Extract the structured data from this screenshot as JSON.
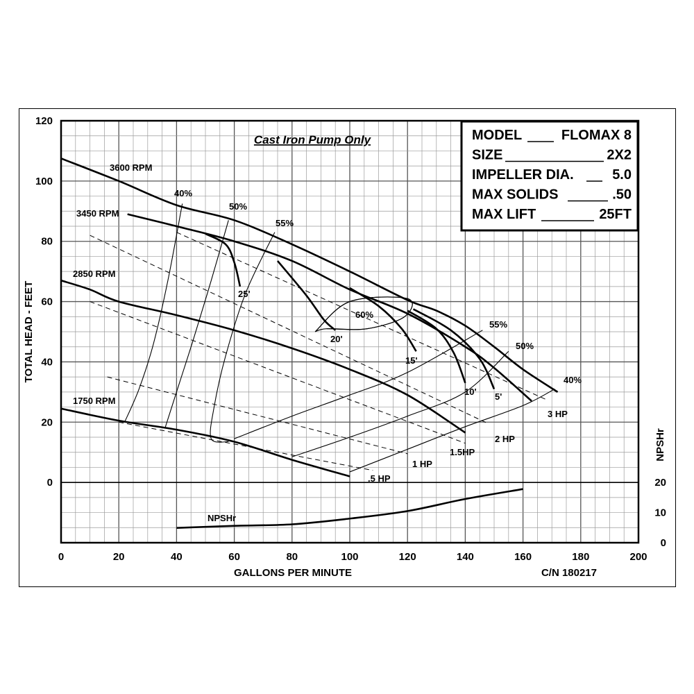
{
  "chart_data": {
    "type": "line",
    "title": "Cast Iron Pump Only",
    "xlabel": "GALLONS PER MINUTE",
    "ylabel": "TOTAL HEAD - FEET",
    "y2label": "NPSHr",
    "xlim": [
      0,
      200
    ],
    "ylim": [
      -20,
      120
    ],
    "y2lim": [
      0,
      20
    ],
    "xticks": [
      "0",
      "20",
      "40",
      "60",
      "80",
      "100",
      "120",
      "140",
      "160",
      "180",
      "200"
    ],
    "yticks": [
      "120",
      "100",
      "80",
      "60",
      "40",
      "20",
      "0"
    ],
    "y2ticks": [
      "20",
      "10",
      "0"
    ],
    "grid": true,
    "catalog_number": "C/N 180217",
    "info_box": [
      {
        "label": "MODEL",
        "value": "FLOMAX 8"
      },
      {
        "label": "SIZE",
        "value": "2X2"
      },
      {
        "label": "IMPELLER DIA.",
        "value": "5.0"
      },
      {
        "label": "MAX SOLIDS",
        "value": ".50"
      },
      {
        "label": "MAX LIFT",
        "value": "25FT"
      }
    ],
    "series": [
      {
        "name": "3600 RPM",
        "x": [
          0,
          20,
          40,
          60,
          80,
          100,
          120,
          130,
          140,
          150,
          160,
          172
        ],
        "y": [
          107.5,
          100,
          92,
          87,
          79,
          70,
          60.5,
          57,
          52,
          45,
          37.5,
          30
        ]
      },
      {
        "name": "3450 RPM",
        "x": [
          23,
          40,
          60,
          80,
          100,
          120,
          140,
          150,
          163
        ],
        "y": [
          89,
          85,
          80,
          73.5,
          64,
          56,
          45,
          38,
          27
        ]
      },
      {
        "name": "2850 RPM",
        "x": [
          0,
          10,
          20,
          40,
          60,
          80,
          100,
          120,
          140
        ],
        "y": [
          67,
          64,
          60,
          55.5,
          50.5,
          44.5,
          37.5,
          29,
          16.5
        ]
      },
      {
        "name": "1750 RPM",
        "x": [
          0,
          20,
          40,
          60,
          80,
          100
        ],
        "y": [
          24.5,
          20.5,
          17.5,
          13.5,
          7.5,
          2
        ]
      },
      {
        "name": "NPSHr",
        "axis": "y2",
        "x": [
          40,
          60,
          80,
          100,
          120,
          140,
          160
        ],
        "y": [
          4.9,
          5.6,
          6.1,
          8,
          10.5,
          14.5,
          17.8
        ]
      }
    ],
    "depth_curves": [
      {
        "label": "25'",
        "x": [
          50,
          57,
          60,
          62
        ],
        "y": [
          82.5,
          79,
          73,
          65
        ]
      },
      {
        "label": "20'",
        "x": [
          75,
          85,
          91,
          95
        ],
        "y": [
          73.5,
          62,
          54,
          50.5
        ]
      },
      {
        "label": "15'",
        "x": [
          100,
          110,
          118,
          123
        ],
        "y": [
          64.5,
          58.5,
          51,
          43.5
        ]
      },
      {
        "label": "10'",
        "x": [
          120,
          130,
          136,
          140
        ],
        "y": [
          57,
          51,
          43,
          33
        ]
      },
      {
        "label": "5'",
        "x": [
          122,
          135,
          145,
          150
        ],
        "y": [
          57.5,
          50.5,
          41,
          31
        ]
      }
    ],
    "efficiency_curves": [
      {
        "label": "40%",
        "x": [
          42,
          37,
          32,
          27,
          22
        ],
        "y": [
          92.5,
          67,
          46,
          31,
          20
        ]
      },
      {
        "label": "50%",
        "x": [
          58,
          52,
          46,
          41,
          36
        ],
        "y": [
          87,
          67,
          48,
          33,
          18
        ]
      },
      {
        "label": "55%",
        "x": [
          74,
          64,
          57,
          53,
          52,
          58
        ],
        "y": [
          83,
          63,
          42,
          25,
          14.5,
          13.5
        ]
      },
      {
        "label": "60%",
        "x": [
          88,
          100,
          120,
          119,
          106,
          92
        ],
        "y": [
          50,
          60,
          61,
          55,
          51,
          51
        ]
      },
      {
        "label": "55%",
        "x": [
          60,
          80,
          100,
          120,
          146
        ],
        "y": [
          14.5,
          22,
          29,
          36.5,
          50.5
        ]
      },
      {
        "label": "50%",
        "x": [
          80,
          100,
          120,
          140,
          155
        ],
        "y": [
          8.5,
          15,
          22,
          30,
          43.5
        ]
      },
      {
        "label": "40%",
        "x": [
          100,
          120,
          140,
          160,
          171
        ],
        "y": [
          3.5,
          11,
          18.5,
          25.5,
          31
        ]
      }
    ],
    "hp_lines": [
      {
        "label": "3 HP",
        "x": [
          40,
          168
        ],
        "y": [
          83,
          27.5
        ]
      },
      {
        "label": "2 HP",
        "x": [
          10,
          148
        ],
        "y": [
          82,
          19.5
        ]
      },
      {
        "label": "1.5HP",
        "x": [
          10,
          140
        ],
        "y": [
          60,
          13
        ]
      },
      {
        "label": "1 HP",
        "x": [
          16,
          120
        ],
        "y": [
          35,
          9.5
        ]
      },
      {
        "label": ".5 HP",
        "x": [
          20,
          108
        ],
        "y": [
          20,
          4
        ]
      }
    ],
    "text_labels": {
      "rpm_3600": "3600 RPM",
      "rpm_3450": "3450 RPM",
      "rpm_2850": "2850 RPM",
      "rpm_1750": "1750 RPM",
      "npshr_curve": "NPSHr"
    }
  }
}
